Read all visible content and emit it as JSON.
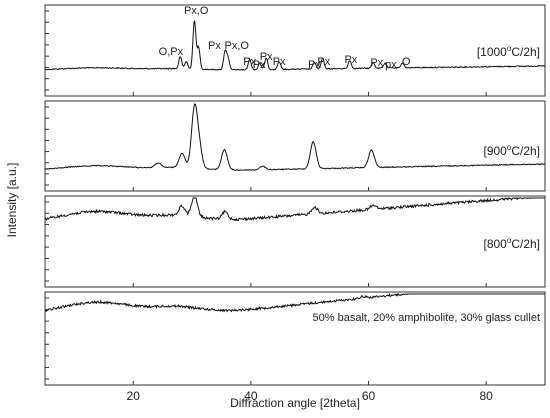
{
  "chart_data": {
    "type": "line",
    "xlabel": "Diffraction angle [2theta]",
    "ylabel": "Intensity [a.u.]",
    "xlim": [
      5,
      90
    ],
    "xticks": [
      20,
      40,
      60,
      80
    ],
    "grid": false,
    "panels": [
      {
        "label": "[1000°C/2h]",
        "label_parts": {
          "pre": "[1000",
          "sup": "o",
          "post": "C/2h]"
        },
        "peaks": [
          {
            "x": 28.0,
            "h": 0.25
          },
          {
            "x": 29.0,
            "h": 0.15
          },
          {
            "x": 30.4,
            "h": 1.0
          },
          {
            "x": 31.1,
            "h": 0.45
          },
          {
            "x": 35.6,
            "h": 0.38
          },
          {
            "x": 36.1,
            "h": 0.25
          },
          {
            "x": 39.8,
            "h": 0.22
          },
          {
            "x": 41.5,
            "h": 0.14
          },
          {
            "x": 42.6,
            "h": 0.24
          },
          {
            "x": 44.8,
            "h": 0.16
          },
          {
            "x": 50.8,
            "h": 0.14
          },
          {
            "x": 52.2,
            "h": 0.22
          },
          {
            "x": 56.8,
            "h": 0.17
          },
          {
            "x": 60.8,
            "h": 0.12
          },
          {
            "x": 62.8,
            "h": 0.1
          },
          {
            "x": 65.8,
            "h": 0.1
          }
        ],
        "annotations": [
          {
            "text": "O,Px",
            "x": 26.4
          },
          {
            "text": "Px,O",
            "x": 30.7
          },
          {
            "text": "Px",
            "x": 33.8
          },
          {
            "text": "Px,O",
            "x": 37.6
          },
          {
            "text": "Px",
            "x": 39.8
          },
          {
            "text": "Px",
            "x": 41.4
          },
          {
            "text": "Px",
            "x": 42.6
          },
          {
            "text": "Px",
            "x": 44.8
          },
          {
            "text": "Px",
            "x": 50.8
          },
          {
            "text": "Px",
            "x": 52.4
          },
          {
            "text": "Px",
            "x": 57.0
          },
          {
            "text": "Px",
            "x": 61.4
          },
          {
            "text": "px",
            "x": 63.8
          },
          {
            "text": "O",
            "x": 66.4
          }
        ]
      },
      {
        "label": "[900°C/2h]",
        "label_parts": {
          "pre": "[900",
          "sup": "o",
          "post": "C/2h]"
        },
        "peaks": [
          {
            "x": 24.2,
            "h": 0.08
          },
          {
            "x": 28.3,
            "h": 0.25
          },
          {
            "x": 30.4,
            "h": 1.0
          },
          {
            "x": 31.2,
            "h": 0.35
          },
          {
            "x": 35.5,
            "h": 0.35
          },
          {
            "x": 42.0,
            "h": 0.06
          },
          {
            "x": 50.6,
            "h": 0.46
          },
          {
            "x": 60.5,
            "h": 0.3
          }
        ]
      },
      {
        "label": "[800°C/2h]",
        "label_parts": {
          "pre": "[800",
          "sup": "o",
          "post": "C/2h]"
        },
        "peaks": [
          {
            "x": 28.3,
            "h": 0.25
          },
          {
            "x": 30.4,
            "h": 0.55
          },
          {
            "x": 35.6,
            "h": 0.2
          },
          {
            "x": 50.8,
            "h": 0.18
          },
          {
            "x": 60.8,
            "h": 0.1
          }
        ]
      },
      {
        "label": "50% basalt, 20% amphibolite, 30% glass cullet",
        "peaks": [
          {
            "x": 59.0,
            "h": 0.06
          }
        ]
      }
    ]
  }
}
